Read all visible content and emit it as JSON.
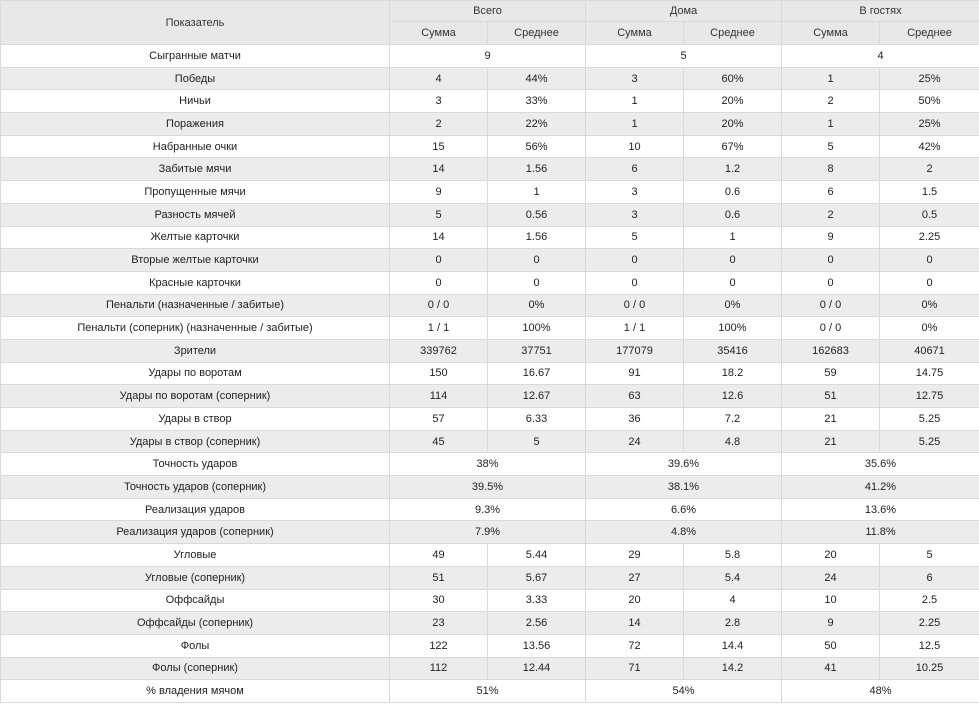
{
  "header": {
    "indicator": "Показатель",
    "groups": [
      "Всего",
      "Дома",
      "В гостях"
    ],
    "sub": [
      "Сумма",
      "Среднее",
      "Сумма",
      "Среднее",
      "Сумма",
      "Среднее"
    ]
  },
  "rows": [
    {
      "label": "Сыгранные матчи",
      "merged": [
        "9",
        "5",
        "4"
      ]
    },
    {
      "label": "Победы",
      "cells": [
        "4",
        "44%",
        "3",
        "60%",
        "1",
        "25%"
      ]
    },
    {
      "label": "Ничьи",
      "cells": [
        "3",
        "33%",
        "1",
        "20%",
        "2",
        "50%"
      ]
    },
    {
      "label": "Поражения",
      "cells": [
        "2",
        "22%",
        "1",
        "20%",
        "1",
        "25%"
      ]
    },
    {
      "label": "Набранные очки",
      "cells": [
        "15",
        "56%",
        "10",
        "67%",
        "5",
        "42%"
      ]
    },
    {
      "label": "Забитые мячи",
      "cells": [
        "14",
        "1.56",
        "6",
        "1.2",
        "8",
        "2"
      ]
    },
    {
      "label": "Пропущенные мячи",
      "cells": [
        "9",
        "1",
        "3",
        "0.6",
        "6",
        "1.5"
      ]
    },
    {
      "label": "Разность мячей",
      "cells": [
        "5",
        "0.56",
        "3",
        "0.6",
        "2",
        "0.5"
      ]
    },
    {
      "label": "Желтые карточки",
      "cells": [
        "14",
        "1.56",
        "5",
        "1",
        "9",
        "2.25"
      ]
    },
    {
      "label": "Вторые желтые карточки",
      "cells": [
        "0",
        "0",
        "0",
        "0",
        "0",
        "0"
      ]
    },
    {
      "label": "Красные карточки",
      "cells": [
        "0",
        "0",
        "0",
        "0",
        "0",
        "0"
      ]
    },
    {
      "label": "Пенальти (назначенные / забитые)",
      "cells": [
        "0 / 0",
        "0%",
        "0 / 0",
        "0%",
        "0 / 0",
        "0%"
      ]
    },
    {
      "label": "Пенальти (соперник) (назначенные / забитые)",
      "cells": [
        "1 / 1",
        "100%",
        "1 / 1",
        "100%",
        "0 / 0",
        "0%"
      ]
    },
    {
      "label": "Зрители",
      "cells": [
        "339762",
        "37751",
        "177079",
        "35416",
        "162683",
        "40671"
      ]
    },
    {
      "label": "Удары по воротам",
      "cells": [
        "150",
        "16.67",
        "91",
        "18.2",
        "59",
        "14.75"
      ]
    },
    {
      "label": "Удары по воротам (соперник)",
      "cells": [
        "114",
        "12.67",
        "63",
        "12.6",
        "51",
        "12.75"
      ]
    },
    {
      "label": "Удары в створ",
      "cells": [
        "57",
        "6.33",
        "36",
        "7.2",
        "21",
        "5.25"
      ]
    },
    {
      "label": "Удары в створ (соперник)",
      "cells": [
        "45",
        "5",
        "24",
        "4.8",
        "21",
        "5.25"
      ]
    },
    {
      "label": "Точность ударов",
      "merged": [
        "38%",
        "39.6%",
        "35.6%"
      ]
    },
    {
      "label": "Точность ударов (соперник)",
      "merged": [
        "39.5%",
        "38.1%",
        "41.2%"
      ]
    },
    {
      "label": "Реализация ударов",
      "merged": [
        "9.3%",
        "6.6%",
        "13.6%"
      ]
    },
    {
      "label": "Реализация ударов (соперник)",
      "merged": [
        "7.9%",
        "4.8%",
        "11.8%"
      ]
    },
    {
      "label": "Угловые",
      "cells": [
        "49",
        "5.44",
        "29",
        "5.8",
        "20",
        "5"
      ]
    },
    {
      "label": "Угловые (соперник)",
      "cells": [
        "51",
        "5.67",
        "27",
        "5.4",
        "24",
        "6"
      ]
    },
    {
      "label": "Оффсайды",
      "cells": [
        "30",
        "3.33",
        "20",
        "4",
        "10",
        "2.5"
      ]
    },
    {
      "label": "Оффсайды (соперник)",
      "cells": [
        "23",
        "2.56",
        "14",
        "2.8",
        "9",
        "2.25"
      ]
    },
    {
      "label": "Фолы",
      "cells": [
        "122",
        "13.56",
        "72",
        "14.4",
        "50",
        "12.5"
      ]
    },
    {
      "label": "Фолы (соперник)",
      "cells": [
        "112",
        "12.44",
        "71",
        "14.2",
        "41",
        "10.25"
      ]
    },
    {
      "label": "% владения мячом",
      "merged": [
        "51%",
        "54%",
        "48%"
      ]
    }
  ]
}
